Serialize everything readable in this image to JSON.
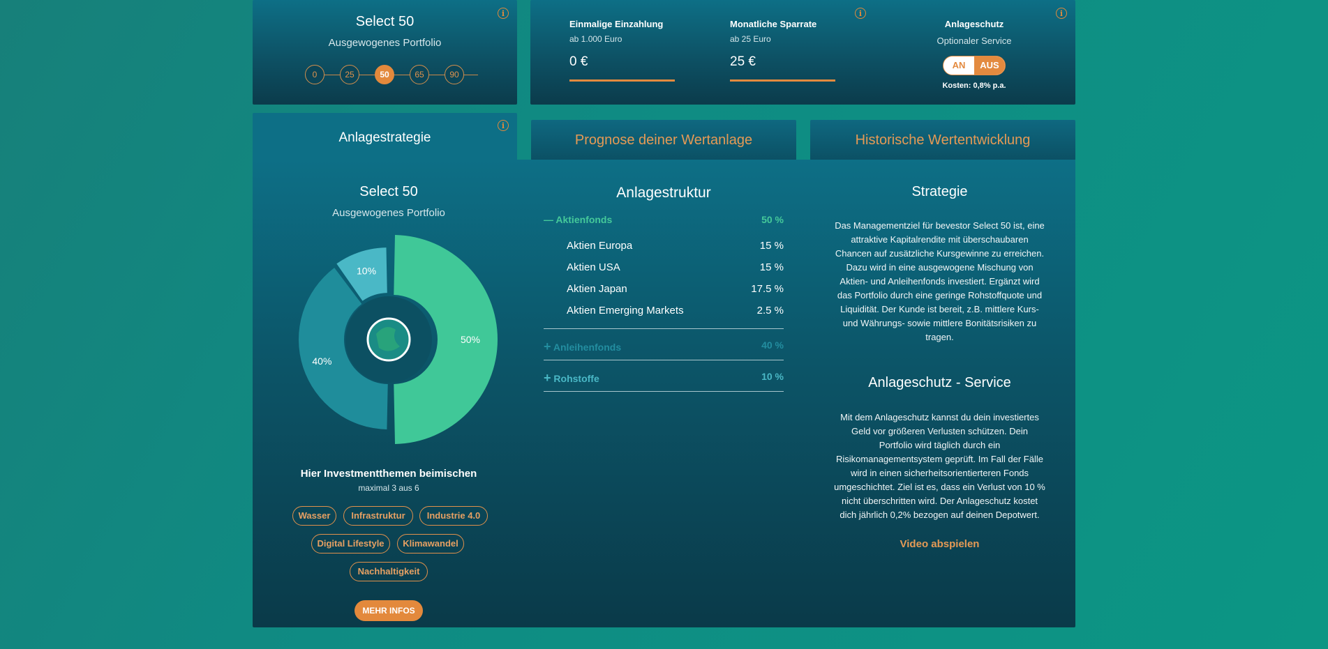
{
  "colors": {
    "accent": "#e3893c",
    "green": "#40c898",
    "teal": "#4ab8c6",
    "dark_teal": "#1f8d9b"
  },
  "top_select": {
    "title": "Select 50",
    "subtitle": "Ausgewogenes Portfolio",
    "steps": [
      "0",
      "25",
      "50",
      "65",
      "90"
    ],
    "active_step": "50",
    "icon": "info-icon"
  },
  "top_inputs": {
    "einmalig_label": "Einmalige Einzahlung",
    "einmalig_sub": "ab 1.000 Euro",
    "einmalig_value": "0 €",
    "monatlich_label": "Monatliche Sparrate",
    "monatlich_sub": "ab 25 Euro",
    "monatlich_value": "25 €",
    "schutz_label": "Anlageschutz",
    "schutz_sub": "Optionaler Service",
    "toggle_on": "AN",
    "toggle_off": "AUS",
    "toggle_state": "AUS",
    "kosten": "Kosten: 0,8% p.a."
  },
  "tabs": {
    "strategy": "Anlagestrategie",
    "prognose": "Prognose deiner Wertanlage",
    "historie": "Historische Wertentwicklung"
  },
  "portfolio": {
    "title": "Select 50",
    "subtitle": "Ausgewogenes Portfolio",
    "themes_title": "Hier Investmentthemen beimischen",
    "themes_sub": "maximal 3 aus 6",
    "themes": [
      "Wasser",
      "Infrastruktur",
      "Industrie 4.0",
      "Digital Lifestyle",
      "Klimawandel",
      "Nachhaltigkeit"
    ],
    "more_button": "MEHR INFOS"
  },
  "chart_data": {
    "type": "pie",
    "categories": [
      "Aktienfonds",
      "Anleihenfonds",
      "Rohstoffe"
    ],
    "values": [
      50,
      40,
      10
    ],
    "labels": [
      "50%",
      "40%",
      "10%"
    ],
    "colors": [
      "#40c898",
      "#1f8d9b",
      "#4ab8c6"
    ]
  },
  "structure": {
    "title": "Anlagestruktur",
    "groups": [
      {
        "name": "Aktienfonds",
        "pct": "50 %",
        "expanded": true,
        "symbol": "—",
        "items": [
          {
            "name": "Aktien Europa",
            "pct": "15 %"
          },
          {
            "name": "Aktien USA",
            "pct": "15 %"
          },
          {
            "name": "Aktien Japan",
            "pct": "17.5 %"
          },
          {
            "name": "Aktien Emerging Markets",
            "pct": "2.5 %"
          }
        ]
      },
      {
        "name": "Anleihenfonds",
        "pct": "40 %",
        "expanded": false,
        "symbol": "+"
      },
      {
        "name": "Rohstoffe",
        "pct": "10 %",
        "expanded": false,
        "symbol": "+"
      }
    ]
  },
  "strategie": {
    "title": "Strategie",
    "lines": [
      "Das Managementziel für bevestor Select 50 ist, eine",
      "attraktive Kapitalrendite mit überschaubaren",
      "Chancen auf zusätzliche Kursgewinne zu erreichen.",
      "Dazu wird in eine ausgewogene Mischung von",
      "Aktien- und Anleihenfonds investiert. Ergänzt wird",
      "das Portfolio durch eine geringe Rohstoffquote und",
      "Liquidität. Der Kunde ist bereit, z.B. mittlere Kurs-",
      "und Währungs- sowie mittlere Bonitätsrisiken zu",
      "tragen."
    ]
  },
  "service": {
    "title": "Anlageschutz - Service",
    "lines": [
      "Mit dem Anlageschutz kannst du dein investiertes",
      "Geld vor größeren Verlusten schützen. Dein",
      "Portfolio wird täglich durch ein",
      "Risikomanagementsystem geprüft. Im Fall der Fälle",
      "wird in einen sicherheitsorientierteren Fonds",
      "umgeschichtet. Ziel ist es, dass ein Verlust von 10 %",
      "nicht überschritten wird. Der Anlageschutz kostet",
      "dich jährlich 0,2% bezogen auf deinen Depotwert."
    ],
    "video_link": "Video abspielen"
  }
}
